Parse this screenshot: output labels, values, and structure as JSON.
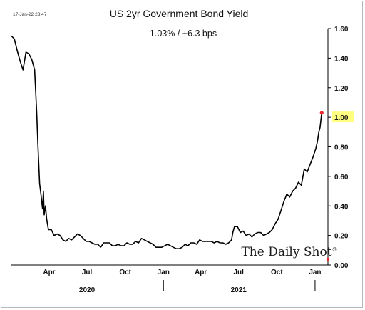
{
  "header": {
    "timestamp": "17-Jan-22 23:47",
    "title": "US 2yr Government Bond Yield",
    "subtitle": "1.03%  /  +6.3 bps"
  },
  "brand": {
    "name": "The Daily Shot",
    "mark": "®"
  },
  "colors": {
    "line": "#000000",
    "last_point": "#e8262c",
    "highlight": "#ffff80"
  },
  "chart_data": {
    "type": "line",
    "title": "US 2yr Government Bond Yield",
    "subtitle": "1.03%  /  +6.3 bps",
    "xlabel": "",
    "ylabel": "",
    "x_range": [
      "2020-01-01",
      "2022-02-01"
    ],
    "ylim": [
      0.0,
      1.6
    ],
    "y_ticks": [
      0.0,
      0.2,
      0.4,
      0.6,
      0.8,
      1.0,
      1.2,
      1.4,
      1.6
    ],
    "y_tick_labels": [
      "0.00",
      "0.20",
      "0.40",
      "0.60",
      "0.80",
      "1.00",
      "1.20",
      "1.40",
      "1.60"
    ],
    "highlighted_tick": "1.00",
    "x_ticks": [
      {
        "label": "Apr",
        "date": "2020-04-01"
      },
      {
        "label": "Jul",
        "date": "2020-07-01"
      },
      {
        "label": "Oct",
        "date": "2020-10-01"
      },
      {
        "label": "Jan",
        "date": "2021-01-01"
      },
      {
        "label": "Apr",
        "date": "2021-04-01"
      },
      {
        "label": "Jul",
        "date": "2021-07-01"
      },
      {
        "label": "Oct",
        "date": "2021-10-01"
      },
      {
        "label": "Jan",
        "date": "2022-01-01"
      }
    ],
    "years": [
      {
        "label": "2020",
        "date": "2020-07-01"
      },
      {
        "label": "2021",
        "date": "2021-07-01"
      }
    ],
    "year_separators": [
      "2021-01-01",
      "2022-01-01"
    ],
    "grid": false,
    "legend": "none",
    "series": [
      {
        "x": [
          "2020-01-01",
          "2020-01-08",
          "2020-01-15",
          "2020-01-22",
          "2020-01-29",
          "2020-02-05",
          "2020-02-12",
          "2020-02-19",
          "2020-02-26",
          "2020-03-02",
          "2020-03-05",
          "2020-03-09",
          "2020-03-12",
          "2020-03-16",
          "2020-03-18",
          "2020-03-20",
          "2020-03-23",
          "2020-03-26",
          "2020-03-30",
          "2020-04-06",
          "2020-04-13",
          "2020-04-20",
          "2020-04-27",
          "2020-05-04",
          "2020-05-11",
          "2020-05-18",
          "2020-05-25",
          "2020-06-01",
          "2020-06-08",
          "2020-06-15",
          "2020-06-22",
          "2020-06-29",
          "2020-07-06",
          "2020-07-13",
          "2020-07-20",
          "2020-07-27",
          "2020-08-03",
          "2020-08-10",
          "2020-08-17",
          "2020-08-24",
          "2020-08-31",
          "2020-09-07",
          "2020-09-14",
          "2020-09-21",
          "2020-09-28",
          "2020-10-05",
          "2020-10-12",
          "2020-10-19",
          "2020-10-26",
          "2020-11-02",
          "2020-11-09",
          "2020-11-16",
          "2020-11-23",
          "2020-11-30",
          "2020-12-07",
          "2020-12-14",
          "2020-12-21",
          "2020-12-28",
          "2021-01-04",
          "2021-01-11",
          "2021-01-18",
          "2021-01-25",
          "2021-02-01",
          "2021-02-08",
          "2021-02-15",
          "2021-02-22",
          "2021-03-01",
          "2021-03-08",
          "2021-03-15",
          "2021-03-22",
          "2021-03-29",
          "2021-04-05",
          "2021-04-12",
          "2021-04-19",
          "2021-04-26",
          "2021-05-03",
          "2021-05-10",
          "2021-05-17",
          "2021-05-24",
          "2021-05-31",
          "2021-06-07",
          "2021-06-14",
          "2021-06-17",
          "2021-06-21",
          "2021-06-28",
          "2021-07-05",
          "2021-07-12",
          "2021-07-19",
          "2021-07-26",
          "2021-08-02",
          "2021-08-09",
          "2021-08-16",
          "2021-08-23",
          "2021-08-30",
          "2021-09-06",
          "2021-09-13",
          "2021-09-20",
          "2021-09-27",
          "2021-10-04",
          "2021-10-11",
          "2021-10-18",
          "2021-10-25",
          "2021-11-01",
          "2021-11-08",
          "2021-11-15",
          "2021-11-22",
          "2021-11-29",
          "2021-12-06",
          "2021-12-13",
          "2021-12-20",
          "2021-12-27",
          "2022-01-03",
          "2022-01-07",
          "2022-01-10",
          "2022-01-13",
          "2022-01-17"
        ],
        "y": [
          1.55,
          1.53,
          1.45,
          1.38,
          1.32,
          1.44,
          1.43,
          1.39,
          1.32,
          1.03,
          0.8,
          0.55,
          0.48,
          0.38,
          0.5,
          0.34,
          0.4,
          0.31,
          0.24,
          0.24,
          0.2,
          0.21,
          0.2,
          0.17,
          0.16,
          0.18,
          0.17,
          0.19,
          0.21,
          0.2,
          0.18,
          0.16,
          0.16,
          0.15,
          0.14,
          0.14,
          0.12,
          0.15,
          0.15,
          0.15,
          0.13,
          0.13,
          0.14,
          0.13,
          0.13,
          0.15,
          0.14,
          0.14,
          0.16,
          0.15,
          0.18,
          0.17,
          0.16,
          0.15,
          0.14,
          0.12,
          0.12,
          0.12,
          0.13,
          0.14,
          0.13,
          0.12,
          0.11,
          0.11,
          0.12,
          0.14,
          0.13,
          0.15,
          0.15,
          0.14,
          0.17,
          0.16,
          0.16,
          0.16,
          0.16,
          0.15,
          0.16,
          0.15,
          0.15,
          0.14,
          0.15,
          0.17,
          0.22,
          0.26,
          0.26,
          0.22,
          0.23,
          0.2,
          0.21,
          0.19,
          0.21,
          0.22,
          0.22,
          0.2,
          0.21,
          0.22,
          0.24,
          0.28,
          0.31,
          0.37,
          0.43,
          0.48,
          0.46,
          0.5,
          0.52,
          0.56,
          0.54,
          0.65,
          0.63,
          0.68,
          0.73,
          0.79,
          0.84,
          0.9,
          0.93,
          1.03
        ]
      }
    ]
  }
}
